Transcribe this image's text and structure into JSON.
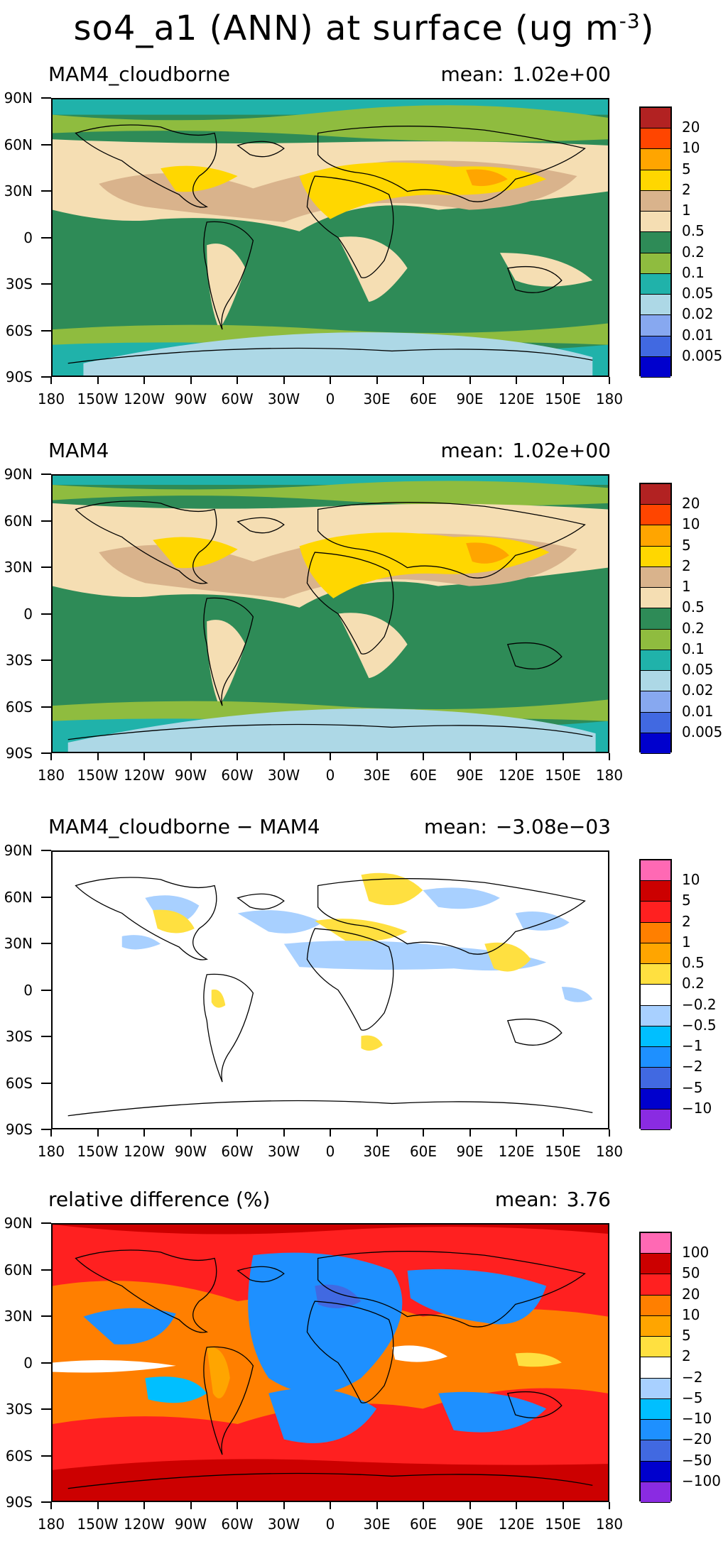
{
  "page": {
    "title_main": "so4_a1 (ANN) at surface (ug m",
    "title_sup": "-3",
    "title_close": ")"
  },
  "axes": {
    "lat_labels": [
      "90N",
      "60N",
      "30N",
      "0",
      "30S",
      "60S",
      "90S"
    ],
    "lon_labels": [
      "180",
      "150W",
      "120W",
      "90W",
      "60W",
      "30W",
      "0",
      "30E",
      "60E",
      "90E",
      "120E",
      "150E",
      "180"
    ]
  },
  "panels": [
    {
      "id": "p1",
      "name": "MAM4_cloudborne",
      "mean_label": "mean:",
      "mean_value": "1.02e+00",
      "type": "abs",
      "colorbar": {
        "levels": [
          "20",
          "10",
          "5",
          "2",
          "1",
          "0.5",
          "0.2",
          "0.1",
          "0.05",
          "0.02",
          "0.01",
          "0.005"
        ],
        "colors": [
          "#b22222",
          "#ff4500",
          "#ffa500",
          "#ffd700",
          "#d9b38c",
          "#f5deb3",
          "#2e8b57",
          "#8fbc3f",
          "#20b2aa",
          "#add8e6",
          "#87a8f0",
          "#4169e1",
          "#0000cd"
        ]
      }
    },
    {
      "id": "p2",
      "name": "MAM4",
      "mean_label": "mean:",
      "mean_value": "1.02e+00",
      "type": "abs",
      "colorbar": {
        "levels": [
          "20",
          "10",
          "5",
          "2",
          "1",
          "0.5",
          "0.2",
          "0.1",
          "0.05",
          "0.02",
          "0.01",
          "0.005"
        ],
        "colors": [
          "#b22222",
          "#ff4500",
          "#ffa500",
          "#ffd700",
          "#d9b38c",
          "#f5deb3",
          "#2e8b57",
          "#8fbc3f",
          "#20b2aa",
          "#add8e6",
          "#87a8f0",
          "#4169e1",
          "#0000cd"
        ]
      }
    },
    {
      "id": "p3",
      "name": "MAM4_cloudborne − MAM4",
      "mean_label": "mean:",
      "mean_value": "−3.08e−03",
      "type": "diff",
      "colorbar": {
        "levels": [
          "10",
          "5",
          "2",
          "1",
          "0.5",
          "0.2",
          "−0.2",
          "−0.5",
          "−1",
          "−2",
          "−5",
          "−10"
        ],
        "colors": [
          "#ff69b4",
          "#cc0000",
          "#ff2020",
          "#ff7f00",
          "#ffa500",
          "#ffe040",
          "#ffffff",
          "#a8d0ff",
          "#00bfff",
          "#1e90ff",
          "#4169e1",
          "#0000cd",
          "#8a2be2"
        ]
      }
    },
    {
      "id": "p4",
      "name": "relative difference (%)",
      "mean_label": "mean:",
      "mean_value": "3.76",
      "type": "rel",
      "colorbar": {
        "levels": [
          "100",
          "50",
          "20",
          "10",
          "5",
          "2",
          "−2",
          "−5",
          "−10",
          "−20",
          "−50",
          "−100"
        ],
        "colors": [
          "#ff69b4",
          "#cc0000",
          "#ff2020",
          "#ff7f00",
          "#ffa500",
          "#ffe040",
          "#ffffff",
          "#a8d0ff",
          "#00bfff",
          "#1e90ff",
          "#4169e1",
          "#0000cd",
          "#8a2be2"
        ]
      }
    }
  ]
}
